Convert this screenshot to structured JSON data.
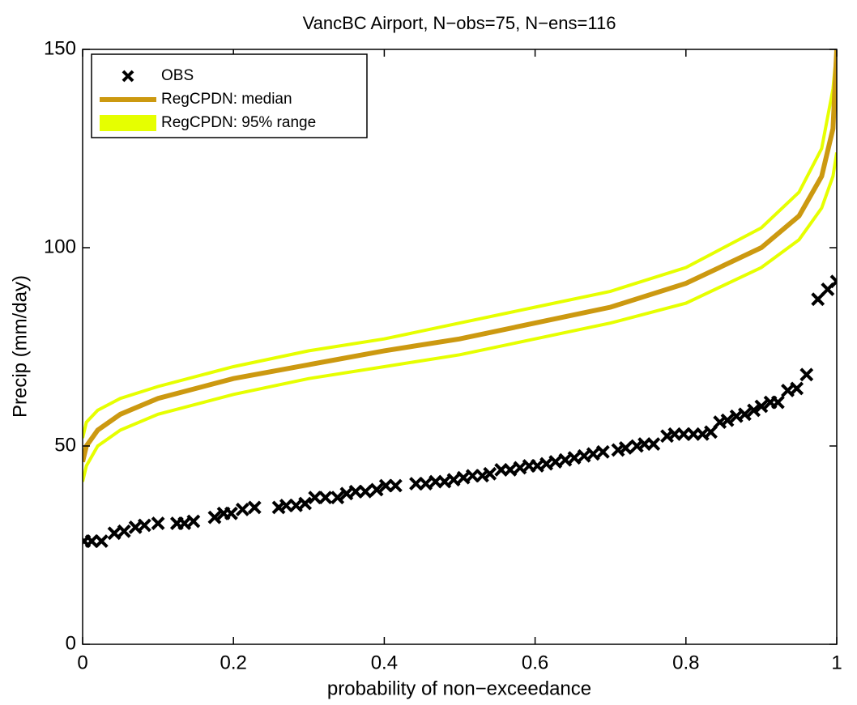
{
  "chart_data": {
    "type": "scatter-line",
    "title": "VancBC Airport, N−obs=75, N−ens=116",
    "x_label": "probability of non−exceedance",
    "y_label": "Precip (mm/day)",
    "xlim": [
      0,
      1
    ],
    "ylim": [
      0,
      150
    ],
    "xticks": [
      0,
      0.2,
      0.4,
      0.6,
      0.8,
      1
    ],
    "yticks": [
      0,
      50,
      100,
      150
    ],
    "legend": "upper left",
    "series": [
      {
        "name": "OBS",
        "color": "#000000",
        "marker": "x",
        "x": [
          0.002,
          0.012,
          0.025,
          0.042,
          0.055,
          0.07,
          0.082,
          0.1,
          0.125,
          0.135,
          0.147,
          0.175,
          0.187,
          0.197,
          0.212,
          0.228,
          0.26,
          0.27,
          0.283,
          0.295,
          0.308,
          0.322,
          0.338,
          0.35,
          0.362,
          0.375,
          0.39,
          0.402,
          0.415,
          0.442,
          0.455,
          0.468,
          0.48,
          0.492,
          0.505,
          0.517,
          0.53,
          0.54,
          0.555,
          0.567,
          0.58,
          0.592,
          0.603,
          0.615,
          0.627,
          0.64,
          0.652,
          0.665,
          0.677,
          0.69,
          0.71,
          0.72,
          0.735,
          0.745,
          0.757,
          0.775,
          0.785,
          0.797,
          0.81,
          0.822,
          0.833,
          0.845,
          0.855,
          0.867,
          0.878,
          0.89,
          0.9,
          0.912,
          0.922,
          0.935,
          0.947,
          0.96,
          0.975,
          0.988,
          1.0
        ],
        "values": [
          26,
          26,
          26,
          28,
          28.5,
          29.5,
          30,
          30.5,
          30.5,
          30.5,
          31,
          32,
          33,
          33,
          34,
          34.5,
          34.5,
          35,
          35,
          35.5,
          37,
          37,
          37,
          38,
          38.5,
          38.5,
          39,
          40,
          40,
          40.5,
          40.5,
          41,
          41,
          41.5,
          42,
          42.5,
          42.5,
          43,
          44,
          44,
          44.5,
          45,
          45,
          45.5,
          46,
          46.5,
          47,
          47.5,
          48,
          48.5,
          49,
          49.5,
          50,
          50.5,
          50.5,
          52.5,
          53,
          53,
          53,
          53,
          53.5,
          56,
          56.5,
          57.5,
          58,
          59,
          60,
          61,
          61,
          64,
          64.5,
          68,
          87,
          89.5,
          91.5
        ]
      },
      {
        "name": "RegCPDN: median",
        "color": "#cc9910",
        "marker": "line",
        "x": [
          0,
          0.005,
          0.02,
          0.05,
          0.1,
          0.2,
          0.3,
          0.4,
          0.5,
          0.6,
          0.7,
          0.8,
          0.9,
          0.95,
          0.98,
          0.995,
          1
        ],
        "values": [
          46,
          50,
          54,
          58,
          62,
          67,
          70.5,
          74,
          77,
          81,
          85,
          91,
          100,
          108,
          118,
          130,
          150
        ]
      },
      {
        "name": "RegCPDN: 95% range",
        "color": "#e6ff00",
        "marker": "band",
        "x": [
          0,
          0.005,
          0.02,
          0.05,
          0.1,
          0.2,
          0.3,
          0.4,
          0.5,
          0.6,
          0.7,
          0.8,
          0.9,
          0.95,
          0.98,
          0.995,
          1
        ],
        "values": [
          52,
          56,
          59,
          62,
          65,
          70,
          74,
          77,
          81,
          85,
          89,
          95,
          105,
          114,
          125,
          140,
          150
        ],
        "lower_values": [
          41,
          45,
          50,
          54,
          58,
          63,
          67,
          70,
          73,
          77,
          81,
          86,
          95,
          102,
          110,
          118,
          124
        ]
      }
    ]
  }
}
